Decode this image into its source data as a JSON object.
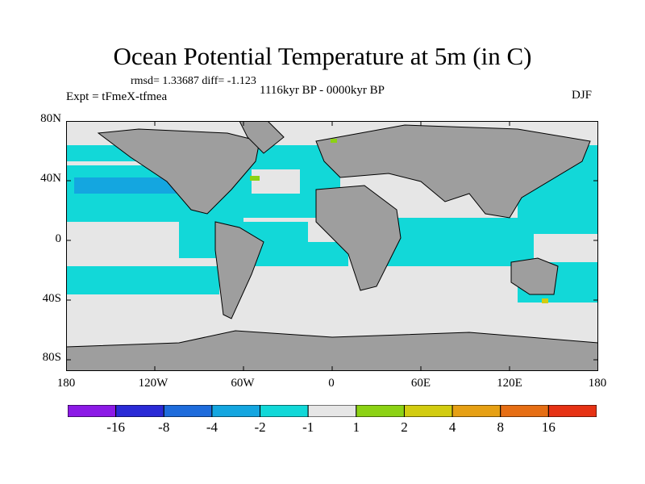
{
  "title": "Ocean Potential Temperature at 5m (in C)",
  "stats": "rmsd= 1.33687 diff= -1.123",
  "experiment": "Expt = tFmeX-tfmea",
  "period": "1116kyr BP - 0000kyr BP",
  "season": "DJF",
  "y_axis": {
    "labels": [
      "80N",
      "40N",
      "0",
      "40S",
      "80S"
    ]
  },
  "x_axis": {
    "labels": [
      "180",
      "120W",
      "60W",
      "0",
      "60E",
      "120E",
      "180"
    ]
  },
  "colorbar": {
    "colors": [
      "#8c1ae6",
      "#2a2ad6",
      "#1e6cdc",
      "#14a6e0",
      "#12d8d8",
      "#e6e6e6",
      "#8cd214",
      "#d2cc10",
      "#e6a014",
      "#e66e14",
      "#e63214"
    ],
    "labels": [
      "-16",
      "-8",
      "-4",
      "-2",
      "-1",
      "1",
      "2",
      "4",
      "8",
      "16"
    ]
  },
  "colors": {
    "land": "#9e9e9e",
    "neutral": "#e6e6e6",
    "cool": "#12d8d8",
    "cooler": "#14a6e0",
    "warm": "#8cd214",
    "warmer": "#d2cc10"
  }
}
